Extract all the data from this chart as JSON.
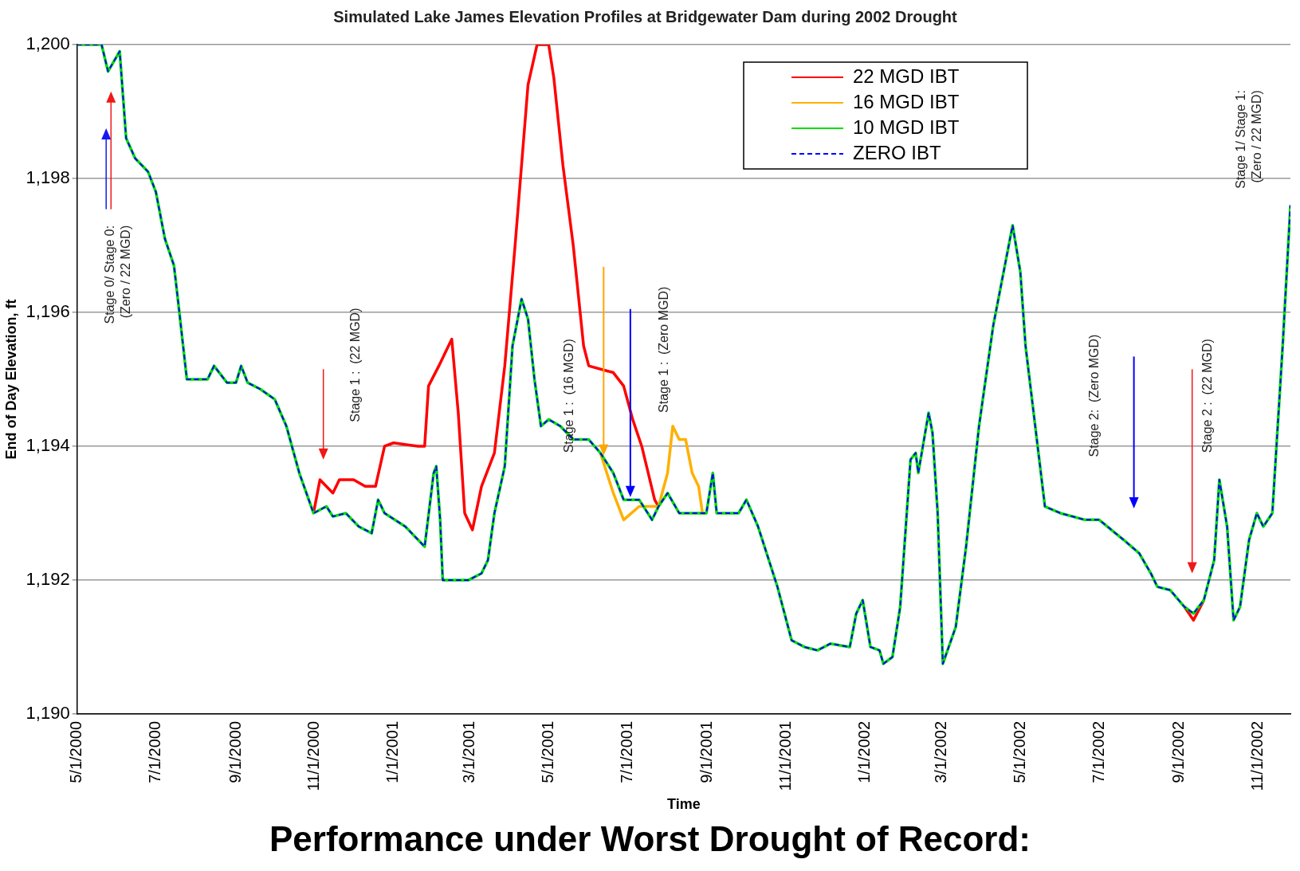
{
  "chart_data": {
    "type": "line",
    "title": "Simulated Lake James Elevation Profiles at Bridgewater Dam during 2002 Drought",
    "xlabel": "Time",
    "ylabel": "End of Day Elevation, ft",
    "grid": "y",
    "legend": "top right",
    "xlim": [
      "2000-05-01",
      "2002-11-26"
    ],
    "xticks": [
      {
        "value": "2000-05-01",
        "label": "5/1/2000"
      },
      {
        "value": "2000-07-01",
        "label": "7/1/2000"
      },
      {
        "value": "2000-09-01",
        "label": "9/1/2000"
      },
      {
        "value": "2000-11-01",
        "label": "11/1/2000"
      },
      {
        "value": "2001-01-01",
        "label": "1/1/2001"
      },
      {
        "value": "2001-03-01",
        "label": "3/1/2001"
      },
      {
        "value": "2001-05-01",
        "label": "5/1/2001"
      },
      {
        "value": "2001-07-01",
        "label": "7/1/2001"
      },
      {
        "value": "2001-09-01",
        "label": "9/1/2001"
      },
      {
        "value": "2001-11-01",
        "label": "11/1/2001"
      },
      {
        "value": "2002-01-01",
        "label": "1/1/2002"
      },
      {
        "value": "2002-03-01",
        "label": "3/1/2002"
      },
      {
        "value": "2002-05-01",
        "label": "5/1/2002"
      },
      {
        "value": "2002-07-01",
        "label": "7/1/2002"
      },
      {
        "value": "2002-09-01",
        "label": "9/1/2002"
      },
      {
        "value": "2002-11-01",
        "label": "11/1/2002"
      }
    ],
    "ylim": [
      1190,
      1200
    ],
    "yticks": [
      {
        "value": 1190,
        "label": "1,190"
      },
      {
        "value": 1192,
        "label": "1,192"
      },
      {
        "value": 1194,
        "label": "1,194"
      },
      {
        "value": 1196,
        "label": "1,196"
      },
      {
        "value": 1198,
        "label": "1,198"
      },
      {
        "value": 1200,
        "label": "1,200"
      }
    ],
    "x": [
      "2000-05-01",
      "2000-05-20",
      "2000-05-25",
      "2000-06-03",
      "2000-06-08",
      "2000-06-15",
      "2000-06-25",
      "2000-07-01",
      "2000-07-08",
      "2000-07-15",
      "2000-07-18",
      "2000-07-25",
      "2000-08-10",
      "2000-08-15",
      "2000-08-25",
      "2000-09-01",
      "2000-09-05",
      "2000-09-10",
      "2000-09-20",
      "2000-10-01",
      "2000-10-10",
      "2000-10-20",
      "2000-10-31",
      "2000-11-10",
      "2000-11-15",
      "2000-11-25",
      "2000-12-05",
      "2000-12-15",
      "2000-12-20",
      "2000-12-25",
      "2001-01-10",
      "2001-01-25",
      "2001-02-01",
      "2001-02-03",
      "2001-02-06",
      "2001-02-08",
      "2001-02-28",
      "2001-03-10",
      "2001-03-15",
      "2001-03-20",
      "2001-03-28",
      "2001-04-03",
      "2001-04-10",
      "2001-04-15",
      "2001-04-20",
      "2001-04-25",
      "2001-05-01",
      "2001-05-10",
      "2001-05-20",
      "2001-06-01",
      "2001-06-10",
      "2001-06-20",
      "2001-06-28",
      "2001-07-10",
      "2001-07-20",
      "2001-07-25",
      "2001-08-01",
      "2001-08-10",
      "2001-08-31",
      "2001-09-05",
      "2001-09-08",
      "2001-09-25",
      "2001-10-01",
      "2001-10-10",
      "2001-10-25",
      "2001-11-05",
      "2001-11-15",
      "2001-11-25",
      "2001-12-05",
      "2001-12-20",
      "2001-12-25",
      "2001-12-30",
      "2002-01-05",
      "2002-01-12",
      "2002-01-15",
      "2002-01-22",
      "2002-01-28",
      "2002-02-05",
      "2002-02-09",
      "2002-02-11",
      "2002-02-19",
      "2002-02-22",
      "2002-02-26",
      "2002-03-02",
      "2002-03-12",
      "2002-03-20",
      "2002-03-30",
      "2002-04-10",
      "2002-04-17",
      "2002-04-25",
      "2002-05-01",
      "2002-05-05",
      "2002-05-10",
      "2002-05-20",
      "2002-06-01",
      "2002-06-20",
      "2002-07-01",
      "2002-07-20",
      "2002-08-01",
      "2002-08-10",
      "2002-08-15",
      "2002-08-25",
      "2002-09-05",
      "2002-09-12",
      "2002-09-20",
      "2002-09-28",
      "2002-10-02",
      "2002-10-08",
      "2002-10-13",
      "2002-10-18",
      "2002-10-25",
      "2002-10-31",
      "2002-11-05",
      "2002-11-12",
      "2002-11-20",
      "2002-11-26"
    ],
    "series": [
      {
        "name": "22 MGD IBT",
        "color": "#ff0000",
        "x": [
          "2000-10-31",
          "2000-11-05",
          "2000-11-15",
          "2000-11-20",
          "2000-12-01",
          "2000-12-10",
          "2000-12-18",
          "2000-12-25",
          "2001-01-01",
          "2001-01-20",
          "2001-01-25",
          "2001-01-28",
          "2001-02-05",
          "2001-02-15",
          "2001-02-20",
          "2001-02-25",
          "2001-03-03",
          "2001-03-10",
          "2001-03-20",
          "2001-03-28",
          "2001-04-05",
          "2001-04-15",
          "2001-04-22",
          "2001-05-01",
          "2001-05-05",
          "2001-05-12",
          "2001-05-20",
          "2001-05-28",
          "2001-06-01",
          "2001-06-20",
          "2001-06-28",
          "2001-07-05",
          "2001-07-12",
          "2001-07-22",
          "2001-07-25",
          "2002-01-01",
          "2002-09-05",
          "2002-09-12",
          "2002-09-20"
        ],
        "values": [
          1193,
          1193.5,
          1193.3,
          1193.5,
          1193.5,
          1193.4,
          1193.4,
          1194,
          1194.05,
          1194,
          1194,
          1194.9,
          1195.2,
          1195.6,
          1194.5,
          1193,
          1192.75,
          1193.4,
          1193.9,
          1195.2,
          1197,
          1199.4,
          1200,
          1200,
          1199.5,
          1198.2,
          1197,
          1195.5,
          1195.2,
          1195.1,
          1194.9,
          1194.4,
          1194,
          1193.2,
          1193.1,
          null,
          1191.6,
          1191.4,
          1191.7
        ]
      },
      {
        "name": "16 MGD IBT",
        "color": "#ffb000",
        "x": [
          "2001-06-10",
          "2001-06-20",
          "2001-06-28",
          "2001-07-10",
          "2001-07-25",
          "2001-08-01",
          "2001-08-05",
          "2001-08-10",
          "2001-08-15",
          "2001-08-20",
          "2001-08-25",
          "2001-08-28",
          "2001-08-31"
        ],
        "values": [
          1193.9,
          1193.3,
          1192.9,
          1193.1,
          1193.1,
          1193.6,
          1194.3,
          1194.1,
          1194.1,
          1193.6,
          1193.4,
          1193,
          1193
        ]
      },
      {
        "name": "10 MGD IBT",
        "color": "#00dd00",
        "values": [
          1200,
          1200,
          1199.6,
          1199.9,
          1198.6,
          1198.3,
          1198.1,
          1197.8,
          1197.1,
          1196.7,
          1196.2,
          1195,
          1195,
          1195.2,
          1194.95,
          1194.95,
          1195.2,
          1194.95,
          1194.85,
          1194.7,
          1194.3,
          1193.6,
          1193,
          1193.1,
          1192.95,
          1193,
          1192.8,
          1192.7,
          1193.2,
          1193,
          1192.8,
          1192.5,
          1193.6,
          1193.7,
          1192.9,
          1192,
          1192,
          1192.1,
          1192.3,
          1193,
          1193.7,
          1195.5,
          1196.2,
          1195.9,
          1195,
          1194.3,
          1194.4,
          1194.3,
          1194.1,
          1194.1,
          1193.9,
          1193.6,
          1193.2,
          1193.2,
          1192.9,
          1193.1,
          1193.3,
          1193,
          1193,
          1193.6,
          1193,
          1193,
          1193.2,
          1192.8,
          1191.9,
          1191.1,
          1191,
          1190.95,
          1191.05,
          1191,
          1191.5,
          1191.7,
          1191,
          1190.95,
          1190.75,
          1190.85,
          1191.6,
          1193.8,
          1193.9,
          1193.6,
          1194.5,
          1194.2,
          1193,
          1190.75,
          1191.3,
          1192.5,
          1194.3,
          1195.8,
          1196.5,
          1197.3,
          1196.6,
          1195.5,
          1194.7,
          1193.1,
          1193,
          1192.9,
          1192.9,
          1192.6,
          1192.4,
          1192.1,
          1191.9,
          1191.85,
          1191.6,
          1191.5,
          1191.7,
          1192.3,
          1193.5,
          1192.8,
          1191.4,
          1191.6,
          1192.6,
          1193,
          1192.8,
          1193,
          1195.5,
          1197.6
        ]
      },
      {
        "name": "ZERO IBT",
        "color": "#0000ff",
        "line_style": "dashed",
        "values": [
          1200,
          1200,
          1199.6,
          1199.9,
          1198.6,
          1198.3,
          1198.1,
          1197.8,
          1197.1,
          1196.7,
          1196.2,
          1195,
          1195,
          1195.2,
          1194.95,
          1194.95,
          1195.2,
          1194.95,
          1194.85,
          1194.7,
          1194.3,
          1193.6,
          1193,
          1193.1,
          1192.95,
          1193,
          1192.8,
          1192.7,
          1193.2,
          1193,
          1192.8,
          1192.5,
          1193.6,
          1193.7,
          1192.9,
          1192,
          1192,
          1192.1,
          1192.3,
          1193,
          1193.7,
          1195.5,
          1196.2,
          1195.9,
          1195,
          1194.3,
          1194.4,
          1194.3,
          1194.1,
          1194.1,
          1193.9,
          1193.6,
          1193.2,
          1193.2,
          1192.9,
          1193.1,
          1193.3,
          1193,
          1193,
          1193.6,
          1193,
          1193,
          1193.2,
          1192.8,
          1191.9,
          1191.1,
          1191,
          1190.95,
          1191.05,
          1191,
          1191.5,
          1191.7,
          1191,
          1190.95,
          1190.75,
          1190.85,
          1191.6,
          1193.8,
          1193.9,
          1193.6,
          1194.5,
          1194.2,
          1193,
          1190.75,
          1191.3,
          1192.5,
          1194.3,
          1195.8,
          1196.5,
          1197.3,
          1196.6,
          1195.5,
          1194.7,
          1193.1,
          1193,
          1192.9,
          1192.9,
          1192.6,
          1192.4,
          1192.1,
          1191.9,
          1191.85,
          1191.6,
          1191.5,
          1191.7,
          1192.3,
          1193.5,
          1192.8,
          1191.4,
          1191.6,
          1192.6,
          1193,
          1192.8,
          1193,
          1195.5,
          1197.6
        ]
      }
    ],
    "annotations": [
      "Performance under Worst Drought of Record:",
      "Stage 0/ Stage 0:\n(Zero / 22 MGD)",
      "Stage 1 :  (22 MGD)",
      "Stage 1 :  (16 MGD)",
      "Stage 1 :  (Zero MGD)",
      "Stage 2:  (Zero MGD)",
      "Stage 2 :  (22 MGD)",
      "Stage 1/ Stage 1:\n(Zero / 22 MGD)"
    ]
  }
}
